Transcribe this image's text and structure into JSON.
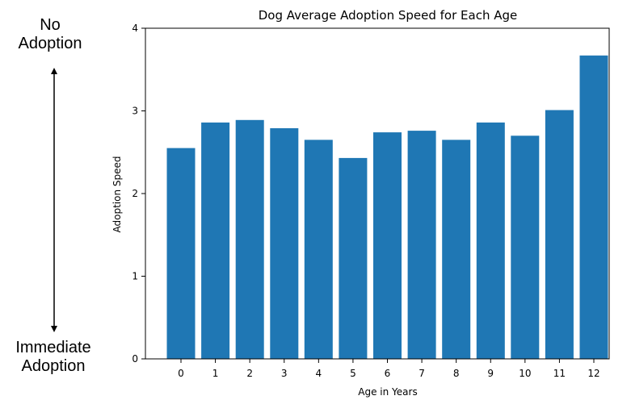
{
  "annotation": {
    "top_line1": "No",
    "top_line2": "Adoption",
    "bottom_line1": "Immediate",
    "bottom_line2": "Adoption"
  },
  "chart_data": {
    "type": "bar",
    "title": "Dog Average Adoption Speed for Each Age",
    "xlabel": "Age in Years",
    "ylabel": "Adoption Speed",
    "categories": [
      "0",
      "1",
      "2",
      "3",
      "4",
      "5",
      "6",
      "7",
      "8",
      "9",
      "10",
      "11",
      "12"
    ],
    "values": [
      2.55,
      2.86,
      2.89,
      2.79,
      2.65,
      2.43,
      2.74,
      2.76,
      2.65,
      2.86,
      2.7,
      3.01,
      3.67
    ],
    "ylim": [
      0,
      4
    ],
    "yticks": [
      0,
      1,
      2,
      3,
      4
    ],
    "grid": false,
    "bar_color": "#1f77b4"
  }
}
